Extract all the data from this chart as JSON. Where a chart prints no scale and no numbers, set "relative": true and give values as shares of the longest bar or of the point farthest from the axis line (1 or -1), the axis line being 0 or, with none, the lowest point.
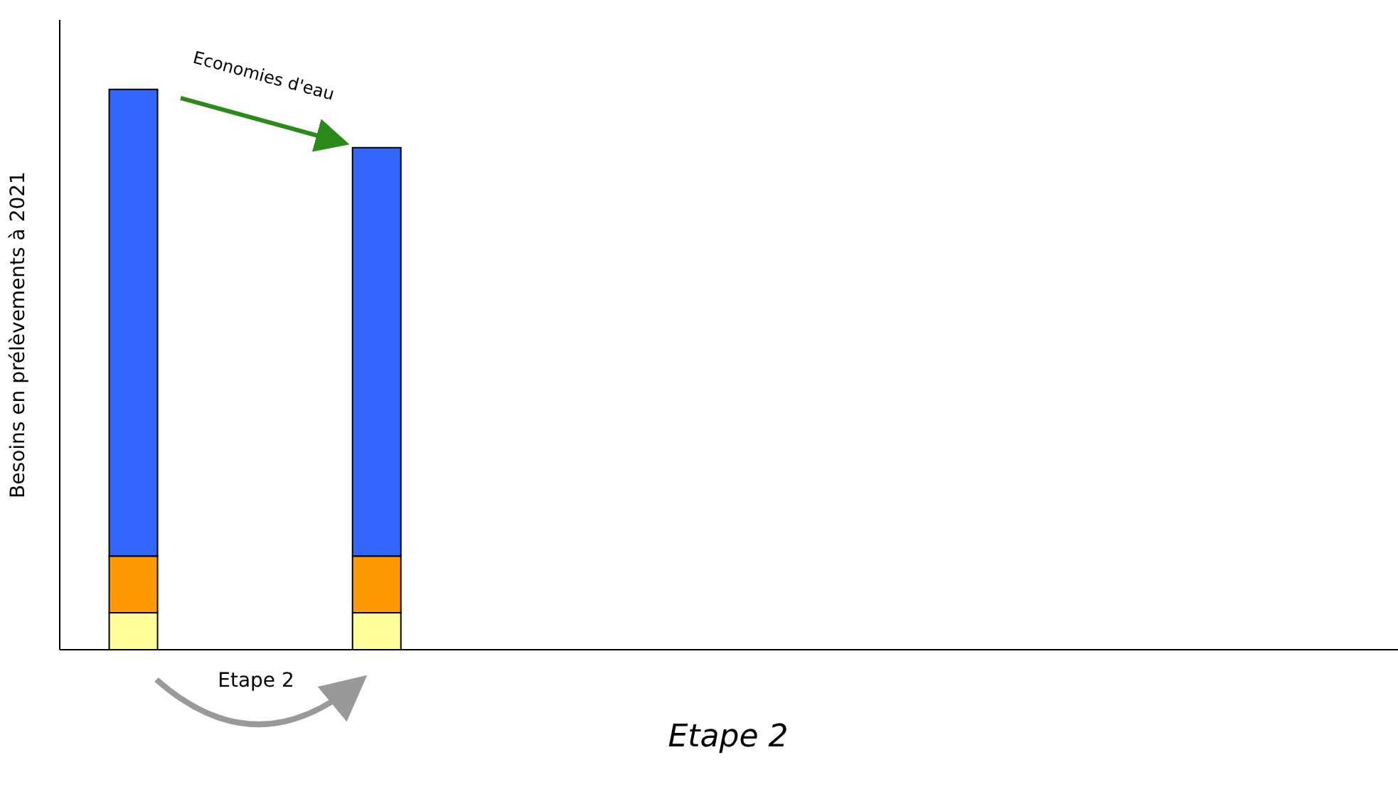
{
  "chart_data": {
    "type": "bar",
    "title": "Etape 2",
    "ylabel": "Besoins en prélèvements à 2021",
    "annotations": [
      "Economies d'eau",
      "Etape 2"
    ],
    "categories": [
      null,
      null
    ],
    "relative": true,
    "stacked": true,
    "series": [
      {
        "color": "#ffff99",
        "values": [
          0.066,
          0.066
        ]
      },
      {
        "color": "#ff9900",
        "values": [
          0.101,
          0.101
        ]
      },
      {
        "color": "#3366ff",
        "values": [
          0.833,
          0.729
        ]
      }
    ]
  }
}
